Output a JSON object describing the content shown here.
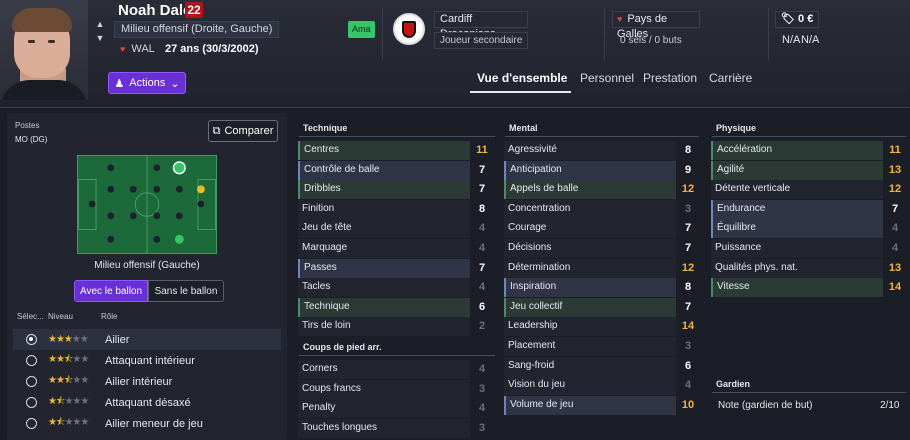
{
  "player": {
    "name": "Noah Daley",
    "number": "22",
    "position": "Milieu offensif (Droite, Gauche)",
    "nationality": "WAL",
    "age": "27 ans (30/3/2002)",
    "status_badge": "Ama"
  },
  "club": {
    "name": "Cardiff Draconians",
    "role": "Joueur secondaire"
  },
  "international": {
    "country": "Pays de Galles",
    "caps": "0 séls / 0 buts"
  },
  "finance": {
    "value": "0 €",
    "na1": "N/A",
    "na2": "N/A"
  },
  "actions_label": "Actions",
  "tabs": [
    "Vue d'ensemble",
    "Personnel",
    "Prestation",
    "Carrière"
  ],
  "positions": {
    "label": "Postes",
    "value": "MO (DG)",
    "compare_label": "Comparer",
    "selected_caption": "Milieu offensif (Gauche)",
    "toggle": {
      "with_ball": "Avec le ballon",
      "without_ball": "Sans le ballon"
    },
    "headers": {
      "select": "Sélec...",
      "level": "Niveau",
      "role": "Rôle"
    },
    "roles": [
      {
        "name": "Ailier",
        "stars": 3,
        "half": false,
        "selected": true
      },
      {
        "name": "Attaquant intérieur",
        "stars": 2,
        "half": true,
        "selected": false
      },
      {
        "name": "Ailier intérieur",
        "stars": 2,
        "half": true,
        "selected": false
      },
      {
        "name": "Attaquant désaxé",
        "stars": 1,
        "half": true,
        "selected": false
      },
      {
        "name": "Ailier meneur de jeu",
        "stars": 1,
        "half": true,
        "selected": false
      }
    ]
  },
  "attributes": {
    "technique": {
      "title": "Technique",
      "items": [
        {
          "name": "Centres",
          "value": 11,
          "hl": "green"
        },
        {
          "name": "Contrôle de balle",
          "value": 7,
          "hl": "blue"
        },
        {
          "name": "Dribbles",
          "value": 7,
          "hl": "green"
        },
        {
          "name": "Finition",
          "value": 8,
          "hl": ""
        },
        {
          "name": "Jeu de tête",
          "value": 4,
          "hl": ""
        },
        {
          "name": "Marquage",
          "value": 4,
          "hl": ""
        },
        {
          "name": "Passes",
          "value": 7,
          "hl": "blue"
        },
        {
          "name": "Tacles",
          "value": 4,
          "hl": ""
        },
        {
          "name": "Technique",
          "value": 6,
          "hl": "green"
        },
        {
          "name": "Tirs de loin",
          "value": 2,
          "hl": ""
        }
      ]
    },
    "set_pieces": {
      "title": "Coups de pied arr.",
      "items": [
        {
          "name": "Corners",
          "value": 4,
          "hl": ""
        },
        {
          "name": "Coups francs",
          "value": 3,
          "hl": ""
        },
        {
          "name": "Penalty",
          "value": 4,
          "hl": ""
        },
        {
          "name": "Touches longues",
          "value": 3,
          "hl": ""
        }
      ]
    },
    "mental": {
      "title": "Mental",
      "items": [
        {
          "name": "Agressivité",
          "value": 8,
          "hl": ""
        },
        {
          "name": "Anticipation",
          "value": 9,
          "hl": "blue"
        },
        {
          "name": "Appels de balle",
          "value": 12,
          "hl": "green"
        },
        {
          "name": "Concentration",
          "value": 3,
          "hl": ""
        },
        {
          "name": "Courage",
          "value": 7,
          "hl": ""
        },
        {
          "name": "Décisions",
          "value": 7,
          "hl": ""
        },
        {
          "name": "Détermination",
          "value": 12,
          "hl": ""
        },
        {
          "name": "Inspiration",
          "value": 8,
          "hl": "blue"
        },
        {
          "name": "Jeu collectif",
          "value": 7,
          "hl": "green"
        },
        {
          "name": "Leadership",
          "value": 14,
          "hl": ""
        },
        {
          "name": "Placement",
          "value": 3,
          "hl": ""
        },
        {
          "name": "Sang-froid",
          "value": 6,
          "hl": ""
        },
        {
          "name": "Vision du jeu",
          "value": 4,
          "hl": ""
        },
        {
          "name": "Volume de jeu",
          "value": 10,
          "hl": "blue"
        }
      ]
    },
    "physique": {
      "title": "Physique",
      "items": [
        {
          "name": "Accélération",
          "value": 11,
          "hl": "green"
        },
        {
          "name": "Agilité",
          "value": 13,
          "hl": "green"
        },
        {
          "name": "Détente verticale",
          "value": 12,
          "hl": ""
        },
        {
          "name": "Endurance",
          "value": 7,
          "hl": "blue"
        },
        {
          "name": "Équilibre",
          "value": 4,
          "hl": "blue"
        },
        {
          "name": "Puissance",
          "value": 4,
          "hl": ""
        },
        {
          "name": "Qualités phys. nat.",
          "value": 13,
          "hl": ""
        },
        {
          "name": "Vitesse",
          "value": 14,
          "hl": "green"
        }
      ]
    },
    "goalkeeper": {
      "title": "Gardien",
      "label": "Note (gardien de but)",
      "value": "2/10"
    }
  },
  "colors": {
    "accent": "#6a2fd8",
    "highlight_value": "#f2b632",
    "pitch": "#1c6a3a"
  }
}
